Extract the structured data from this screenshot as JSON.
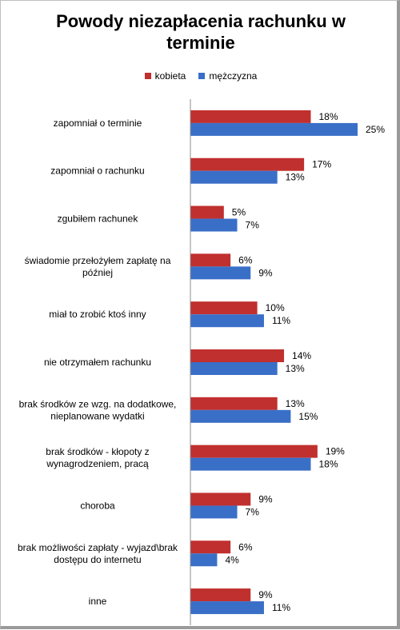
{
  "chart_data": {
    "type": "bar",
    "orientation": "horizontal",
    "title": "Powody niezapłacenia rachunku w terminie",
    "legend_position": "top",
    "grid": false,
    "xlim": [
      0,
      25
    ],
    "categories": [
      "zapomniał o terminie",
      "zapomniał o rachunku",
      "zgubiłem rachunek",
      "świadomie przełożyłem zapłatę na później",
      "miał to zrobić ktoś inny",
      "nie otrzymałem rachunku",
      "brak środków ze wzg. na dodatkowe, nieplanowane wydatki",
      "brak środków - kłopoty z wynagrodzeniem, pracą",
      "choroba",
      "brak możliwości zapłaty - wyjazd\\brak dostępu do internetu",
      "inne"
    ],
    "category_lines": [
      [
        "zapomniał o terminie"
      ],
      [
        "zapomniał o rachunku"
      ],
      [
        "zgubiłem rachunek"
      ],
      [
        "świadomie przełożyłem zapłatę na",
        "później"
      ],
      [
        "miał to zrobić ktoś inny"
      ],
      [
        "nie otrzymałem rachunku"
      ],
      [
        "brak środków ze wzg. na dodatkowe,",
        "nieplanowane wydatki"
      ],
      [
        "brak środków - kłopoty z",
        "wynagrodzeniem, pracą"
      ],
      [
        "choroba"
      ],
      [
        "brak możliwości zapłaty - wyjazd\\brak",
        "dostępu do internetu"
      ],
      [
        "inne"
      ]
    ],
    "series": [
      {
        "name": "kobieta",
        "color": "#c0302e",
        "values": [
          18,
          17,
          5,
          6,
          10,
          14,
          13,
          19,
          9,
          6,
          9
        ]
      },
      {
        "name": "mężczyzna",
        "color": "#3a6fc8",
        "values": [
          25,
          13,
          7,
          9,
          11,
          13,
          15,
          18,
          7,
          4,
          11
        ]
      }
    ],
    "value_suffix": "%"
  }
}
